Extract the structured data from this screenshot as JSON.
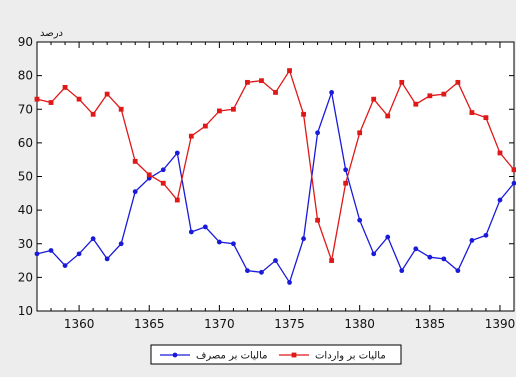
{
  "chart_data": {
    "type": "line",
    "ylabel": "درصد",
    "xlim": [
      1357,
      1391
    ],
    "ylim": [
      10,
      90
    ],
    "x_ticks": [
      1360,
      1365,
      1370,
      1375,
      1380,
      1385,
      1390
    ],
    "y_ticks": [
      10,
      20,
      30,
      40,
      50,
      60,
      70,
      80,
      90
    ],
    "grid": false,
    "legend_position": "bottom-center",
    "x": [
      1357,
      1358,
      1359,
      1360,
      1361,
      1362,
      1363,
      1364,
      1365,
      1366,
      1367,
      1368,
      1369,
      1370,
      1371,
      1372,
      1373,
      1374,
      1375,
      1376,
      1377,
      1378,
      1379,
      1380,
      1381,
      1382,
      1383,
      1384,
      1385,
      1386,
      1387,
      1388,
      1389,
      1390,
      1391
    ],
    "series": [
      {
        "name": "مالیات بر مصرف",
        "color": "#1a1adb",
        "values": [
          27,
          28,
          23.5,
          27,
          31.5,
          25.5,
          30,
          45.5,
          49.5,
          52,
          57,
          33.5,
          35,
          30.5,
          30,
          22,
          21.5,
          25,
          18.5,
          31.5,
          63,
          75,
          52,
          37,
          27,
          32,
          22,
          28.5,
          26,
          25.5,
          22,
          31,
          32.5,
          43,
          48
        ]
      },
      {
        "name": "مالیات بر واردات",
        "color": "#e01818",
        "values": [
          73,
          72,
          76.5,
          73,
          68.5,
          74.5,
          70,
          54.5,
          50.5,
          48,
          43,
          62,
          65,
          69.5,
          70,
          78,
          78.5,
          75,
          81.5,
          68.5,
          37,
          25,
          48,
          63,
          73,
          68,
          78,
          71.5,
          74,
          74.5,
          78,
          69,
          67.5,
          57,
          52
        ]
      }
    ]
  }
}
